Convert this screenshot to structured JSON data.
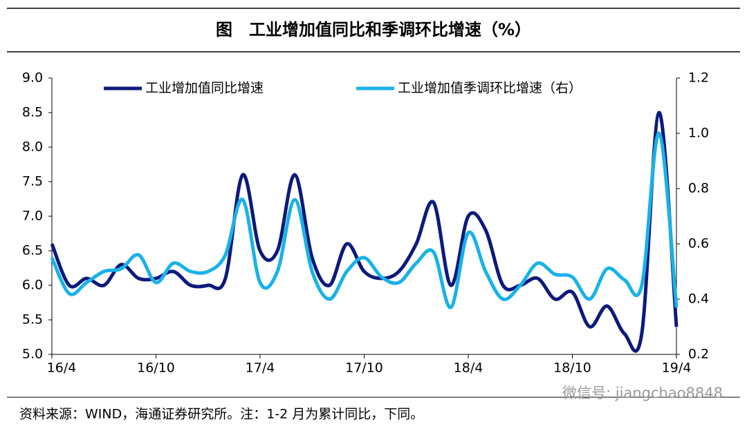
{
  "chart_data": {
    "type": "line",
    "title": "图　工业增加值同比和季调环比增速（%）",
    "source": "资料来源：WIND，海通证券研究所。注：1-2 月为累计同比，下同。",
    "watermark": "微信号: jiangchao8848",
    "categories": [
      "16/4",
      null,
      null,
      null,
      null,
      null,
      "16/10",
      null,
      null,
      null,
      null,
      null,
      "17/4",
      null,
      null,
      null,
      null,
      null,
      "17/10",
      null,
      null,
      null,
      null,
      null,
      "18/4",
      null,
      null,
      null,
      null,
      null,
      "18/10",
      null,
      null,
      null,
      null,
      null,
      "19/4"
    ],
    "series": [
      {
        "name": "工业增加值同比增速",
        "color": "#0d1a7a",
        "axis": "y",
        "values": [
          6.6,
          6.0,
          6.1,
          6.0,
          6.3,
          6.1,
          6.1,
          6.2,
          6.0,
          6.0,
          6.1,
          7.6,
          6.5,
          6.5,
          7.6,
          6.4,
          6.0,
          6.6,
          6.2,
          6.1,
          6.2,
          6.6,
          7.2,
          6.0,
          7.0,
          6.8,
          6.0,
          6.0,
          6.1,
          5.8,
          5.9,
          5.4,
          5.7,
          5.3,
          5.3,
          8.5,
          5.4
        ]
      },
      {
        "name": "工业增加值季调环比增速（右）",
        "color": "#19b2e8",
        "axis": "y2",
        "values": [
          0.55,
          0.42,
          0.46,
          0.5,
          0.51,
          0.56,
          0.46,
          0.53,
          0.5,
          0.5,
          0.56,
          0.76,
          0.46,
          0.5,
          0.76,
          0.5,
          0.4,
          0.5,
          0.55,
          0.48,
          0.46,
          0.53,
          0.57,
          0.37,
          0.64,
          0.5,
          0.4,
          0.45,
          0.53,
          0.49,
          0.48,
          0.4,
          0.51,
          0.47,
          0.45,
          1.0,
          0.37
        ]
      }
    ],
    "ylim": [
      5,
      9
    ],
    "yticks": [
      {
        "value": 5,
        "label": "5.0"
      },
      5.5,
      {
        "value": 6,
        "label": "6.0"
      },
      6.5,
      {
        "value": 7,
        "label": "7.0"
      },
      7.5,
      {
        "value": 8,
        "label": "8.0"
      },
      8.5,
      {
        "value": 9,
        "label": "9.0"
      }
    ],
    "y2lim": [
      0.2,
      1.2
    ],
    "y2ticks": [
      0.2,
      0.4,
      0.6,
      0.8,
      {
        "value": 1,
        "label": "1.0"
      },
      1.2
    ]
  }
}
